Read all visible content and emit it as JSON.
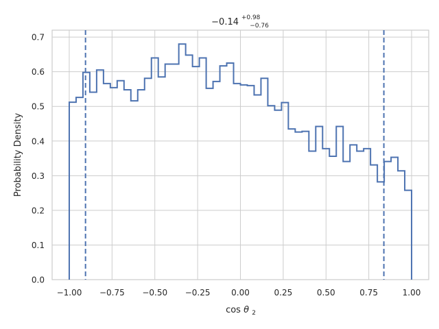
{
  "chart_data": {
    "type": "histogram-step",
    "title": {
      "main": "−0.14",
      "sup": "+0.98",
      "sub": "−0.76"
    },
    "xlabel": {
      "main": "cos",
      "greek": "θ",
      "sub": "2"
    },
    "ylabel": "Probability Density",
    "xlim": [
      -1.1,
      1.1
    ],
    "ylim": [
      0,
      0.72
    ],
    "x_ticks": [
      -1.0,
      -0.75,
      -0.5,
      -0.25,
      0.0,
      0.25,
      0.5,
      0.75,
      1.0
    ],
    "x_tick_labels": [
      "−1.00",
      "−0.75",
      "−0.50",
      "−0.25",
      "0.00",
      "0.25",
      "0.50",
      "0.75",
      "1.00"
    ],
    "y_ticks": [
      0.0,
      0.1,
      0.2,
      0.3,
      0.4,
      0.5,
      0.6,
      0.7
    ],
    "y_tick_labels": [
      "0.0",
      "0.1",
      "0.2",
      "0.3",
      "0.4",
      "0.5",
      "0.6",
      "0.7"
    ],
    "grid": true,
    "line_color": "#4c72b0",
    "grid_color": "#cccccc",
    "bin_edges": [
      -1.0,
      -0.96,
      -0.92,
      -0.88,
      -0.84,
      -0.8,
      -0.76,
      -0.72,
      -0.68,
      -0.64,
      -0.6,
      -0.56,
      -0.52,
      -0.48,
      -0.44,
      -0.4,
      -0.36,
      -0.32,
      -0.28,
      -0.24,
      -0.2,
      -0.16,
      -0.12,
      -0.08,
      -0.04,
      0.0,
      0.04,
      0.08,
      0.12,
      0.16,
      0.2,
      0.24,
      0.28,
      0.32,
      0.36,
      0.4,
      0.44,
      0.48,
      0.52,
      0.56,
      0.6,
      0.64,
      0.68,
      0.72,
      0.76,
      0.8,
      0.84,
      0.88,
      0.92,
      0.96,
      1.0
    ],
    "densities": [
      0.512,
      0.526,
      0.598,
      0.541,
      0.605,
      0.566,
      0.554,
      0.574,
      0.548,
      0.516,
      0.548,
      0.581,
      0.64,
      0.585,
      0.622,
      0.622,
      0.68,
      0.648,
      0.615,
      0.64,
      0.552,
      0.572,
      0.617,
      0.625,
      0.566,
      0.562,
      0.56,
      0.533,
      0.581,
      0.502,
      0.489,
      0.511,
      0.435,
      0.426,
      0.428,
      0.371,
      0.442,
      0.378,
      0.356,
      0.442,
      0.341,
      0.389,
      0.371,
      0.378,
      0.331,
      0.282,
      0.341,
      0.353,
      0.314,
      0.258
    ],
    "vlines": [
      -0.905,
      0.838
    ]
  }
}
